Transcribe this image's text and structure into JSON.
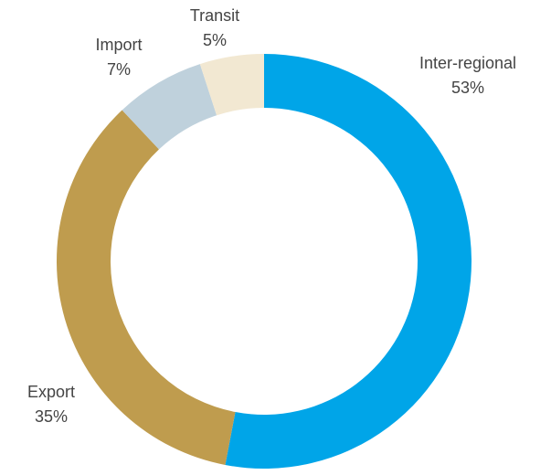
{
  "chart_data": {
    "type": "donut",
    "categories": [
      "Inter-regional",
      "Export",
      "Import",
      "Transit"
    ],
    "values": [
      53,
      35,
      7,
      5
    ],
    "value_labels": [
      "53%",
      "35%",
      "7%",
      "5%"
    ],
    "colors": [
      "#00a5e8",
      "#bf9c4e",
      "#bfd1dc",
      "#f2e8d2"
    ]
  }
}
